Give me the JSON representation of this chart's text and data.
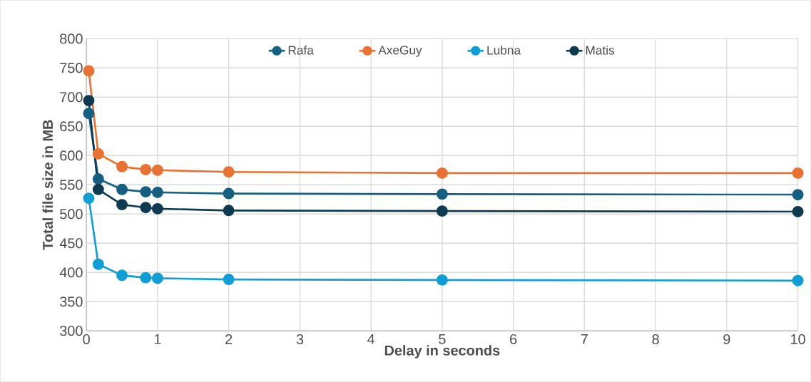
{
  "chart_data": {
    "type": "line",
    "xlabel": "Delay in seconds",
    "ylabel": "Total file size in MB",
    "x": [
      0.033,
      0.167,
      0.5,
      0.833,
      1,
      2,
      5,
      10
    ],
    "series": [
      {
        "name": "Rafa",
        "color": "#156082",
        "values": [
          672,
          560,
          542,
          538,
          537,
          535,
          534,
          533
        ]
      },
      {
        "name": "AxeGuy",
        "color": "#e97132",
        "values": [
          745,
          603,
          581,
          576,
          575,
          572,
          570,
          570
        ]
      },
      {
        "name": "Lubna",
        "color": "#0f9ed5",
        "values": [
          527,
          414,
          395,
          391,
          390,
          388,
          387,
          386
        ]
      },
      {
        "name": "Matis",
        "color": "#0e3a52",
        "values": [
          694,
          542,
          516,
          511,
          509,
          506,
          505,
          504
        ]
      }
    ],
    "xlim": [
      0,
      10
    ],
    "xticks": [
      0,
      1,
      2,
      3,
      4,
      5,
      6,
      7,
      8,
      9,
      10
    ],
    "ylim": [
      300,
      800
    ],
    "yticks": [
      300,
      350,
      400,
      450,
      500,
      550,
      600,
      650,
      700,
      750,
      800
    ],
    "grid": true,
    "legend": "top",
    "marker": "circle",
    "line_style": "solid"
  }
}
